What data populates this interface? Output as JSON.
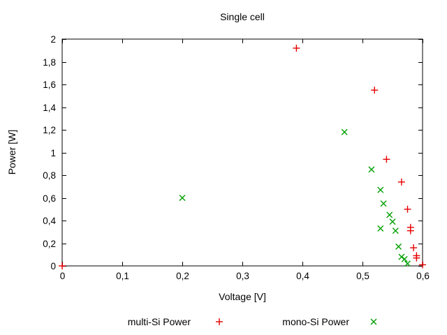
{
  "title": "Single cell",
  "chart_data": {
    "type": "scatter",
    "title": "Single cell",
    "xlabel": "Voltage [V]",
    "ylabel": "Power [W]",
    "xlim": [
      0,
      0.6
    ],
    "ylim": [
      0,
      2
    ],
    "grid": false,
    "legend_position": "below-plot",
    "decimal_separator": ",",
    "frame_color": "#000000",
    "x_ticks": [
      [
        0,
        "0"
      ],
      [
        0.1,
        "0,1"
      ],
      [
        0.2,
        "0,2"
      ],
      [
        0.3,
        "0,3"
      ],
      [
        0.4,
        "0,4"
      ],
      [
        0.5,
        "0,5"
      ],
      [
        0.6,
        "0,6"
      ]
    ],
    "y_ticks": [
      [
        0,
        "0"
      ],
      [
        0.2,
        "0,2"
      ],
      [
        0.4,
        "0,4"
      ],
      [
        0.6,
        "0,6"
      ],
      [
        0.8,
        "0,8"
      ],
      [
        1,
        "1"
      ],
      [
        1.2,
        "1,2"
      ],
      [
        1.4,
        "1,4"
      ],
      [
        1.6,
        "1,6"
      ],
      [
        1.8,
        "1,8"
      ],
      [
        2,
        "2"
      ]
    ],
    "series": [
      {
        "name": "multi-Si Power",
        "marker": "plus",
        "color": "#e60000",
        "points": [
          [
            0.0,
            0.0
          ],
          [
            0.39,
            1.92
          ],
          [
            0.52,
            1.55
          ],
          [
            0.54,
            0.94
          ],
          [
            0.565,
            0.74
          ],
          [
            0.575,
            0.5
          ],
          [
            0.58,
            0.34
          ],
          [
            0.58,
            0.31
          ],
          [
            0.585,
            0.16
          ],
          [
            0.59,
            0.09
          ],
          [
            0.59,
            0.07
          ],
          [
            0.6,
            0.01
          ]
        ]
      },
      {
        "name": "mono-Si Power",
        "marker": "cross",
        "color": "#00a000",
        "points": [
          [
            0.2,
            0.6
          ],
          [
            0.47,
            1.18
          ],
          [
            0.515,
            0.85
          ],
          [
            0.53,
            0.67
          ],
          [
            0.535,
            0.55
          ],
          [
            0.545,
            0.45
          ],
          [
            0.55,
            0.39
          ],
          [
            0.53,
            0.33
          ],
          [
            0.555,
            0.31
          ],
          [
            0.56,
            0.17
          ],
          [
            0.565,
            0.08
          ],
          [
            0.57,
            0.06
          ],
          [
            0.575,
            0.02
          ]
        ]
      }
    ]
  }
}
